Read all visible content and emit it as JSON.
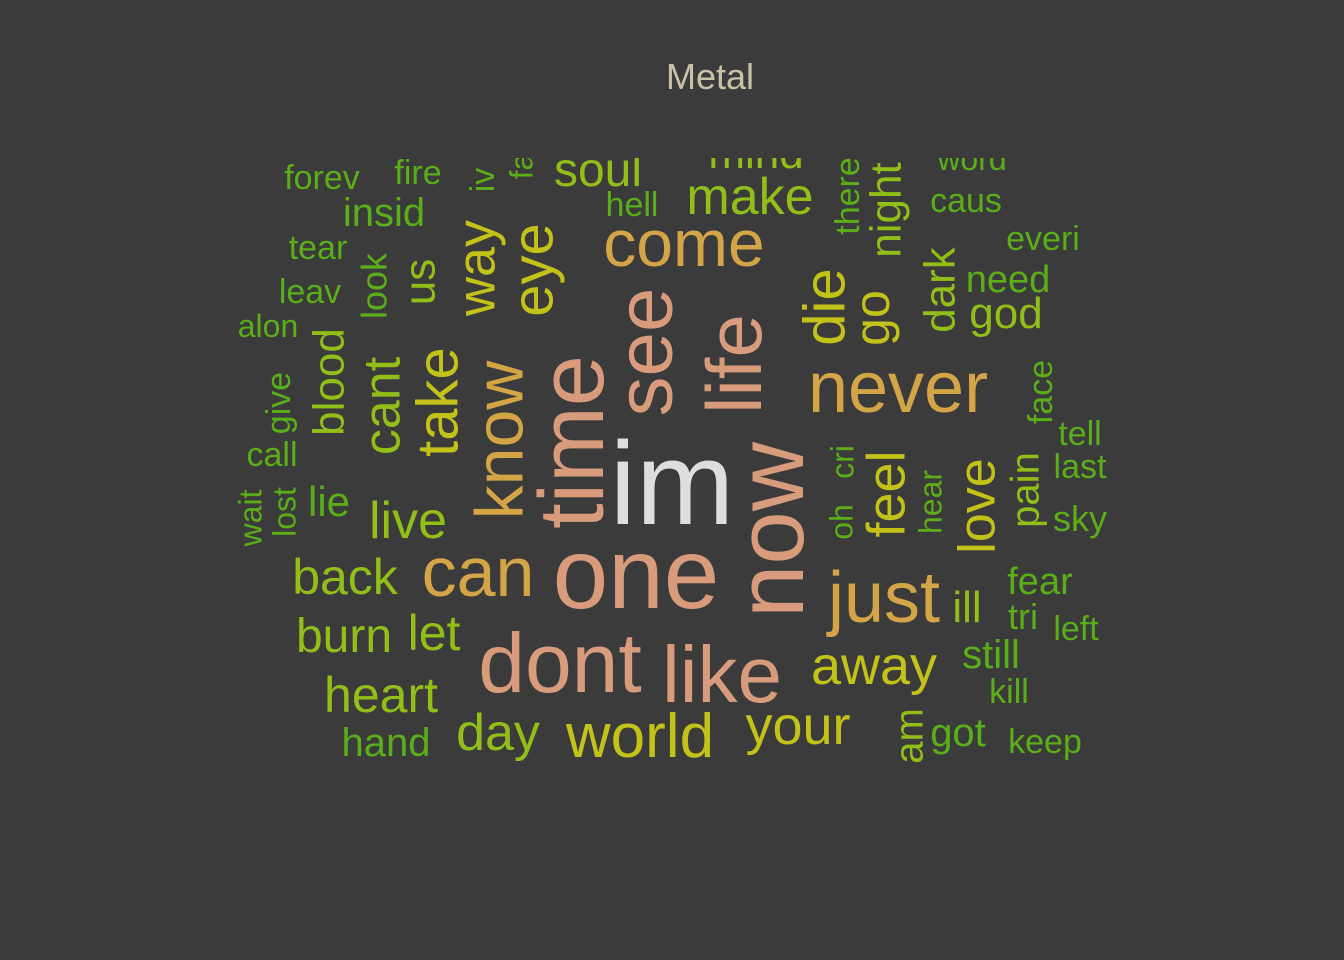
{
  "chart_data": {
    "type": "wordcloud",
    "title": "Metal",
    "colors": {
      "background": "#3b3b3b",
      "title": "#c9c2a6",
      "palette": [
        "#dedede",
        "#d89c7c",
        "#d4a546",
        "#c2c219",
        "#92be18",
        "#5aae18"
      ]
    },
    "words": [
      {
        "text": "im",
        "tier": 0
      },
      {
        "text": "one",
        "tier": 1
      },
      {
        "text": "time",
        "tier": 1
      },
      {
        "text": "now",
        "tier": 1
      },
      {
        "text": "see",
        "tier": 1
      },
      {
        "text": "life",
        "tier": 1
      },
      {
        "text": "dont",
        "tier": 1
      },
      {
        "text": "like",
        "tier": 1
      },
      {
        "text": "never",
        "tier": 2
      },
      {
        "text": "come",
        "tier": 2
      },
      {
        "text": "just",
        "tier": 2
      },
      {
        "text": "know",
        "tier": 2
      },
      {
        "text": "can",
        "tier": 2
      },
      {
        "text": "eye",
        "tier": 3
      },
      {
        "text": "die",
        "tier": 3
      },
      {
        "text": "world",
        "tier": 3
      },
      {
        "text": "way",
        "tier": 3
      },
      {
        "text": "take",
        "tier": 3
      },
      {
        "text": "love",
        "tier": 3
      },
      {
        "text": "away",
        "tier": 3
      },
      {
        "text": "your",
        "tier": 3
      },
      {
        "text": "feel",
        "tier": 3
      },
      {
        "text": "go",
        "tier": 3
      },
      {
        "text": "cant",
        "tier": 4
      },
      {
        "text": "us",
        "tier": 4
      },
      {
        "text": "live",
        "tier": 4
      },
      {
        "text": "make",
        "tier": 4
      },
      {
        "text": "soul",
        "tier": 4
      },
      {
        "text": "night",
        "tier": 4
      },
      {
        "text": "dark",
        "tier": 4
      },
      {
        "text": "day",
        "tier": 4
      },
      {
        "text": "heart",
        "tier": 4
      },
      {
        "text": "back",
        "tier": 4
      },
      {
        "text": "let",
        "tier": 4
      },
      {
        "text": "burn",
        "tier": 4
      },
      {
        "text": "blood",
        "tier": 4
      },
      {
        "text": "god",
        "tier": 4
      },
      {
        "text": "pain",
        "tier": 4
      },
      {
        "text": "mind",
        "tier": 4
      },
      {
        "text": "ill",
        "tier": 4
      },
      {
        "text": "am",
        "tier": 4
      },
      {
        "text": "lie",
        "tier": 5
      },
      {
        "text": "look",
        "tier": 5
      },
      {
        "text": "insid",
        "tier": 5
      },
      {
        "text": "still",
        "tier": 5
      },
      {
        "text": "got",
        "tier": 5
      },
      {
        "text": "hand",
        "tier": 5
      },
      {
        "text": "need",
        "tier": 5
      },
      {
        "text": "fear",
        "tier": 5
      },
      {
        "text": "face",
        "tier": 5
      },
      {
        "text": "give",
        "tier": 5
      },
      {
        "text": "there",
        "tier": 5
      },
      {
        "text": "hell",
        "tier": 5
      },
      {
        "text": "caus",
        "tier": 5
      },
      {
        "text": "everi",
        "tier": 5
      },
      {
        "text": "tear",
        "tier": 5
      },
      {
        "text": "leav",
        "tier": 5
      },
      {
        "text": "alon",
        "tier": 5
      },
      {
        "text": "forev",
        "tier": 5
      },
      {
        "text": "fire",
        "tier": 5
      },
      {
        "text": "iv",
        "tier": 5
      },
      {
        "text": "fa",
        "tier": 5
      },
      {
        "text": "word",
        "tier": 5
      },
      {
        "text": "call",
        "tier": 5
      },
      {
        "text": "lost",
        "tier": 5
      },
      {
        "text": "wait",
        "tier": 5
      },
      {
        "text": "cri",
        "tier": 5
      },
      {
        "text": "oh",
        "tier": 5
      },
      {
        "text": "hear",
        "tier": 5
      },
      {
        "text": "tell",
        "tier": 5
      },
      {
        "text": "last",
        "tier": 5
      },
      {
        "text": "sky",
        "tier": 5
      },
      {
        "text": "tri",
        "tier": 5
      },
      {
        "text": "left",
        "tier": 5
      },
      {
        "text": "kill",
        "tier": 5
      },
      {
        "text": "keep",
        "tier": 5
      }
    ]
  }
}
